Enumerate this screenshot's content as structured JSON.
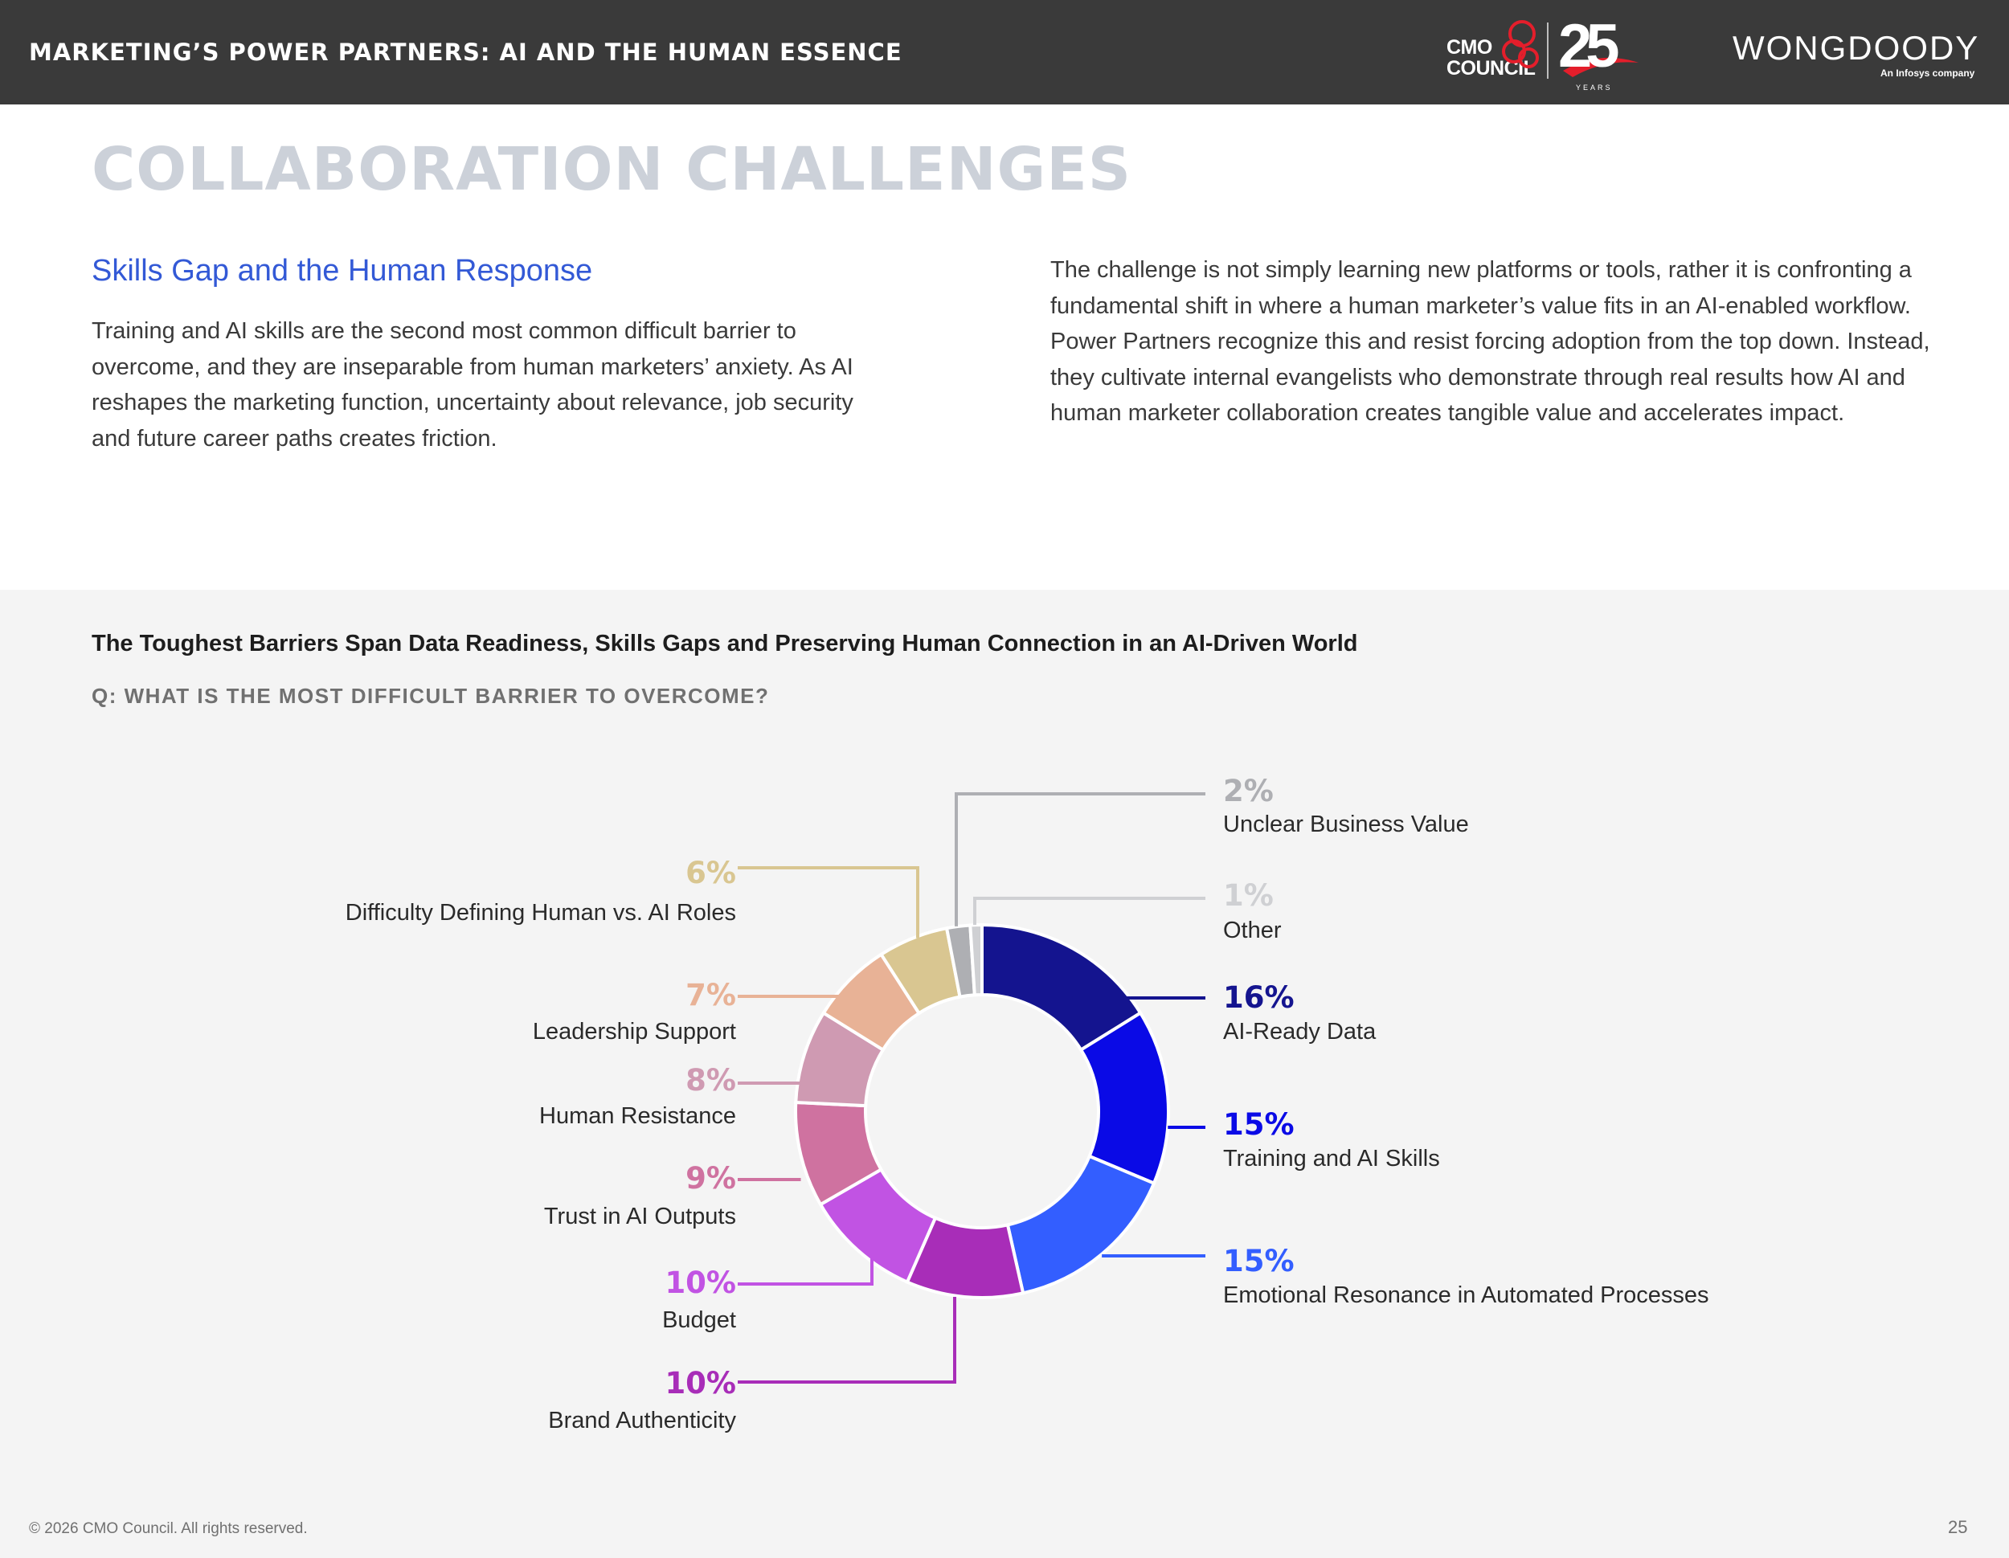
{
  "header": {
    "doc_title": "MARKETING’S POWER PARTNERS: AI AND THE HUMAN ESSENCE",
    "cmo_logo_line1": "CMO",
    "cmo_logo_line2": "COUNCIL",
    "years_number": "25",
    "years_word": "YEARS",
    "partner_logo": "WONGDOODY",
    "partner_tagline": "An Infosys company"
  },
  "page": {
    "heading": "COLLABORATION CHALLENGES",
    "subheading": "Skills Gap and the Human Response",
    "left_paragraph": "Training and AI skills are the second most common difficult barrier to overcome, and they are inseparable from human marketers’ anxiety. As AI reshapes the marketing function, uncertainty about relevance, job security and future career paths creates friction.",
    "right_paragraph": "The challenge is not simply learning new platforms or tools, rather it is confronting a fundamental shift in where a human marketer’s value fits in an AI-enabled workflow. Power Partners recognize this and resist forcing adoption from the top down. Instead, they cultivate internal evangelists who demonstrate through real results how AI and human marketer collaboration creates tangible value and accelerates impact."
  },
  "chart_data": {
    "type": "pie",
    "variant": "donut",
    "title": "The Toughest Barriers Span Data Readiness, Skills Gaps and Preserving Human Connection in an AI-Driven World",
    "question": "Q: WHAT IS THE MOST DIFFICULT BARRIER TO OVERCOME?",
    "slices": [
      {
        "label": "AI-Ready Data",
        "value": 16,
        "pct_label": "16%",
        "color": "#14148f"
      },
      {
        "label": "Training and AI Skills",
        "value": 15,
        "pct_label": "15%",
        "color": "#0a0ae6"
      },
      {
        "label": "Emotional Resonance in Automated Processes",
        "value": 15,
        "pct_label": "15%",
        "color": "#335eff"
      },
      {
        "label": "Brand Authenticity",
        "value": 10,
        "pct_label": "10%",
        "color": "#a82db8"
      },
      {
        "label": "Budget",
        "value": 10,
        "pct_label": "10%",
        "color": "#c153e3"
      },
      {
        "label": "Trust in AI Outputs",
        "value": 9,
        "pct_label": "9%",
        "color": "#cf72a0"
      },
      {
        "label": "Human Resistance",
        "value": 8,
        "pct_label": "8%",
        "color": "#cf9ab2"
      },
      {
        "label": "Leadership Support",
        "value": 7,
        "pct_label": "7%",
        "color": "#e8b296"
      },
      {
        "label": "Difficulty Defining Human vs. AI Roles",
        "value": 6,
        "pct_label": "6%",
        "color": "#d9c691"
      },
      {
        "label": "Unclear Business Value",
        "value": 2,
        "pct_label": "2%",
        "color": "#aeafb3"
      },
      {
        "label": "Other",
        "value": 1,
        "pct_label": "1%",
        "color": "#cfd0d3"
      }
    ]
  },
  "footer": {
    "copyright": "© 2026 CMO Council. All rights reserved.",
    "page_number": "25"
  }
}
